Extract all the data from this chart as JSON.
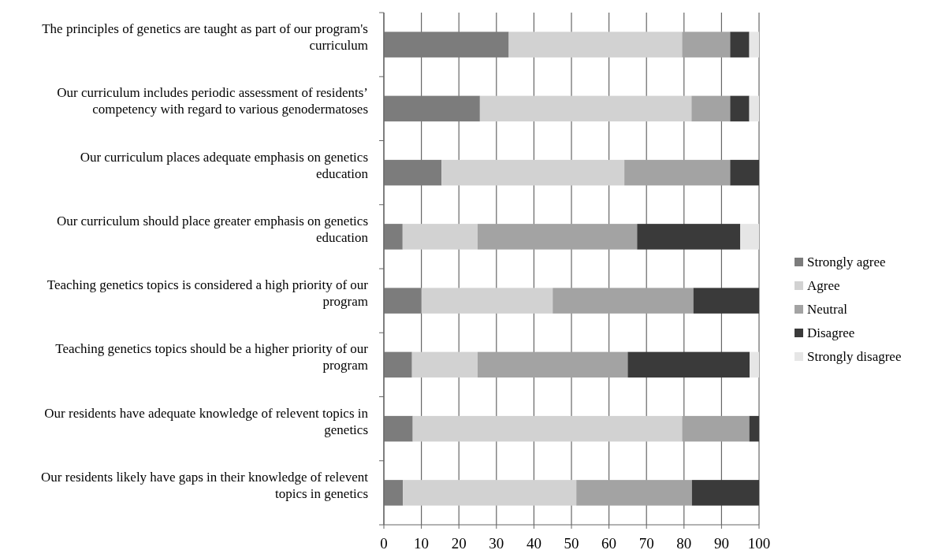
{
  "chart_data": {
    "type": "bar",
    "orientation": "horizontal",
    "stacked": true,
    "categories": [
      "The principles of genetics are taught as part of our program's curriculum",
      "Our curriculum includes periodic assessment of residents’ competency with regard to various genodermatoses",
      "Our curriculum places adequate emphasis on genetics education",
      "Our curriculum should place greater emphasis on genetics education",
      "Teaching genetics topics is considered a high priority of our program",
      "Teaching genetics topics should be a higher priority of our program",
      "Our residents have adequate knowledge of relevent topics in genetics",
      "Our residents likely have gaps in their knowledge of relevent topics in genetics"
    ],
    "series": [
      {
        "name": "Strongly agree",
        "color": "#7c7c7c",
        "values": [
          33.3,
          25.6,
          15.4,
          5,
          10,
          7.5,
          7.7,
          5.1
        ]
      },
      {
        "name": "Agree",
        "color": "#d2d2d2",
        "values": [
          46.2,
          56.4,
          48.7,
          20,
          35,
          17.5,
          71.8,
          46.2
        ]
      },
      {
        "name": "Neutral",
        "color": "#a3a3a3",
        "values": [
          12.8,
          10.3,
          28.2,
          42.5,
          37.5,
          40,
          17.9,
          30.8
        ]
      },
      {
        "name": "Disagree",
        "color": "#3a3a3a",
        "values": [
          5.1,
          5.1,
          7.7,
          27.5,
          17.5,
          32.5,
          2.6,
          17.9
        ]
      },
      {
        "name": "Strongly disagree",
        "color": "#e6e6e6",
        "values": [
          2.6,
          2.6,
          0,
          5,
          0,
          2.5,
          0,
          0
        ]
      }
    ],
    "xlim": [
      0,
      100
    ],
    "xticks": [
      0,
      10,
      20,
      30,
      40,
      50,
      60,
      70,
      80,
      90,
      100
    ],
    "grid": "x",
    "legend": "right"
  }
}
